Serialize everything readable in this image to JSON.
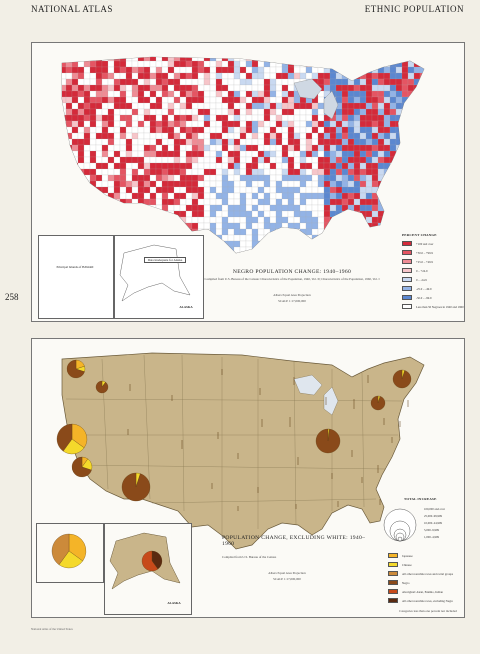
{
  "header": {
    "left": "NATIONAL ATLAS",
    "right": "ETHNIC POPULATION",
    "page_number": "258"
  },
  "map1": {
    "title": "NEGRO POPULATION CHANGE: 1940–1960",
    "subtitle": "Compiled from U.S. Bureau of the Census: Characteristics of the Population, 1940, Vol. II; Characteristics of the Population, 1960, Vol. I",
    "projection": "Albers Equal Area Projection",
    "scale": "SCALE 1:17,000,000",
    "legend_title": "PERCENT CHANGE",
    "legend": [
      {
        "label": "+100 and over",
        "color": "#d42a3a"
      },
      {
        "label": "+50.0 – +99.9",
        "color": "#e45563"
      },
      {
        "label": "+25.0 – +49.9",
        "color": "#ee8c95"
      },
      {
        "label": "0 – +24.9",
        "color": "#f6c5c9"
      },
      {
        "label": "0 – -24.9",
        "color": "#c9d9f1"
      },
      {
        "label": "-25.0 – -49.9",
        "color": "#93b3e6"
      },
      {
        "label": "-50.0 – -99.9",
        "color": "#5b87d0"
      },
      {
        "label": "Less than 50 Negroes in 1940 and 1960",
        "color": "#ffffff"
      }
    ],
    "inset_hawaii": "Principal Islands of HAWAII",
    "inset_note": "Data inadequate for Alaska",
    "inset_alaska": "ALASKA"
  },
  "map2": {
    "title": "POPULATION CHANGE, EXCLUDING WHITE: 1940–1960",
    "subtitle": "Compiled from U.S. Bureau of the Census",
    "projection": "Albers Equal Area Projection",
    "scale": "SCALE 1:17,000,000",
    "size_legend_title": "TOTAL INCREASE",
    "size_legend": [
      "100,000 and over",
      "25,000–99,999",
      "10,000–24,999",
      "5,000–9,999",
      "1,000–4,999"
    ],
    "legend": [
      {
        "label": "Japanese",
        "color": "#f4b428"
      },
      {
        "label": "Chinese",
        "color": "#f4d92b"
      },
      {
        "label": "All other nonwhite races and racial groups",
        "color": "#cc8a3a"
      },
      {
        "label": "Negro",
        "color": "#8a4a1a"
      },
      {
        "label": "Aboriginal: Aleut, Eskimo, Indian",
        "color": "#c74a1a"
      },
      {
        "label": "All other nonwhite races, excluding Negro",
        "color": "#5a2a10"
      }
    ],
    "inset_alaska": "ALASKA",
    "note": "Categories less than one percent not included"
  },
  "credit": "National Atlas of the United States"
}
